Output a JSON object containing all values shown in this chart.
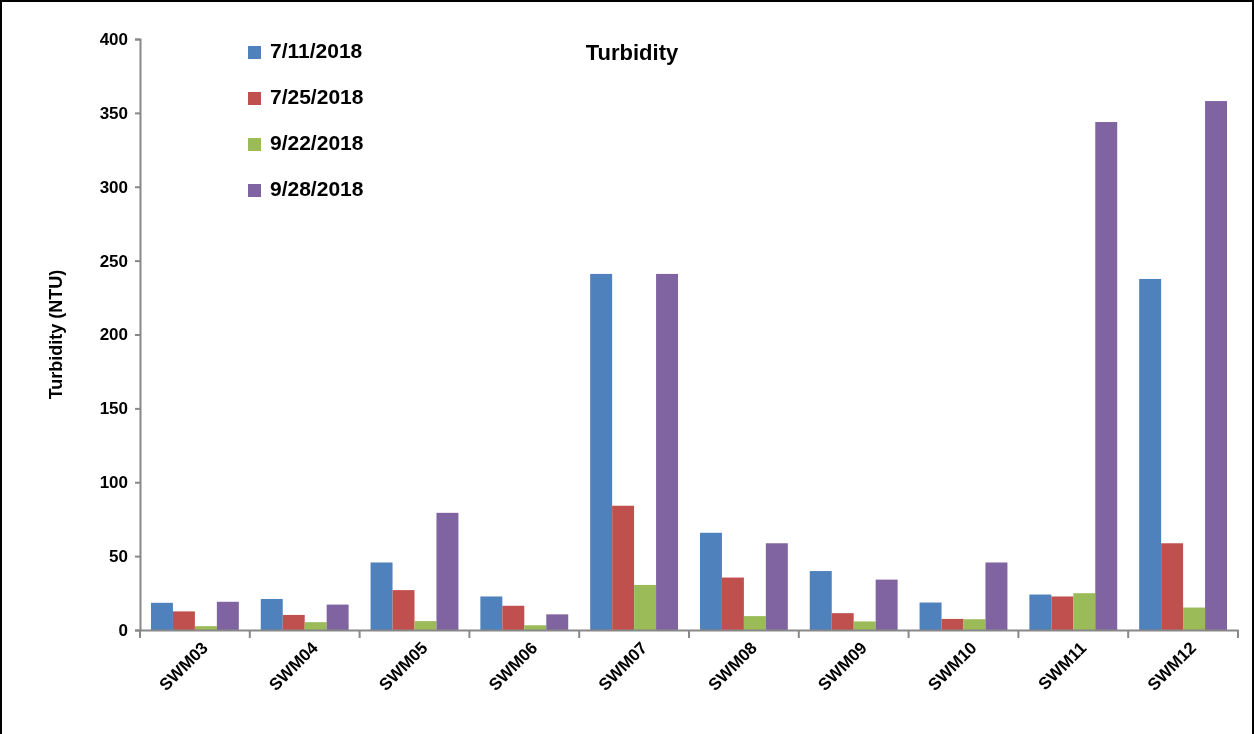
{
  "chart_data": {
    "type": "bar",
    "title": "Turbidity",
    "ylabel": "Turbidity (NTU)",
    "categories": [
      "SWM03",
      "SWM04",
      "SWM05",
      "SWM06",
      "SWM07",
      "SWM08",
      "SWM09",
      "SWM10",
      "SWM11",
      "SWM12"
    ],
    "series": [
      {
        "name": "7/11/2018",
        "color": "#4f81bd",
        "values": [
          18.4,
          21,
          45.7,
          22.7,
          241,
          65.8,
          39.9,
          18.6,
          24,
          237.6
        ]
      },
      {
        "name": "7/25/2018",
        "color": "#c0504d",
        "values": [
          12.6,
          10.2,
          27,
          16.4,
          84.1,
          35.5,
          11.4,
          7.5,
          22.7,
          58.7
        ]
      },
      {
        "name": "9/22/2018",
        "color": "#9bbb59",
        "values": [
          2.6,
          5.3,
          6,
          3.2,
          30.5,
          9.4,
          5.8,
          7.3,
          24.9,
          15.2
        ]
      },
      {
        "name": "9/28/2018",
        "color": "#8064a2",
        "values": [
          19.1,
          17.2,
          79.3,
          10.6,
          241,
          58.7,
          34.1,
          45.7,
          343.8,
          358
        ]
      }
    ],
    "ylim": [
      0,
      400
    ],
    "yticks": [
      0,
      50,
      100,
      150,
      200,
      250,
      300,
      350,
      400
    ],
    "grid": false,
    "legend": "top left"
  }
}
